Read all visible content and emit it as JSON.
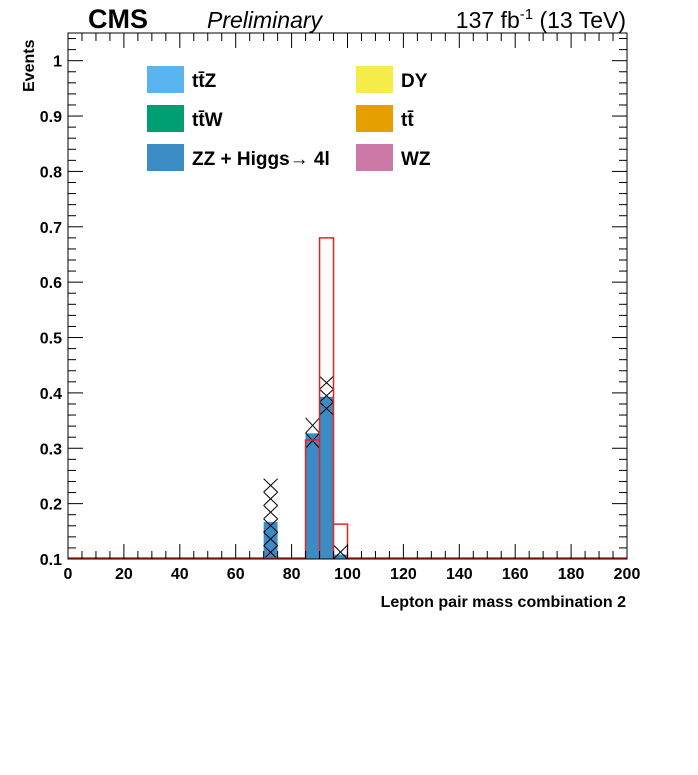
{
  "header": {
    "experiment": "CMS",
    "status": "Preliminary",
    "lumi_value": "137 fb",
    "lumi_exp": "-1",
    "lumi_energy": " (13 TeV)"
  },
  "chart_data": {
    "type": "bar",
    "xlabel": "Lepton pair mass combination 2",
    "ylabel": "Events",
    "xlim": [
      0,
      200
    ],
    "ylim": [
      0.1,
      1.05
    ],
    "xticks": [
      0,
      20,
      40,
      60,
      80,
      100,
      120,
      140,
      160,
      180,
      200
    ],
    "yticks": [
      0.1,
      0.2,
      0.3,
      0.4,
      0.5,
      0.6,
      0.7,
      0.8,
      0.9,
      1
    ],
    "bin_width": 5,
    "legend": [
      {
        "label": "tt̄Z",
        "color": "#5ab4ef"
      },
      {
        "label": "DY",
        "color": "#f5ec4a"
      },
      {
        "label": "tt̄W",
        "color": "#009e73"
      },
      {
        "label": "tt̄",
        "color": "#e69f00"
      },
      {
        "label": "ZZ + Higgs→ 4l",
        "color": "#3b8cc4"
      },
      {
        "label": "WZ",
        "color": "#cc79a7"
      }
    ],
    "stack_bins": [
      {
        "x0": 70,
        "x1": 75,
        "value": 0.167
      },
      {
        "x0": 85,
        "x1": 90,
        "value": 0.327
      },
      {
        "x0": 90,
        "x1": 95,
        "value": 0.393
      },
      {
        "x0": 95,
        "x1": 100,
        "value": 0.108
      }
    ],
    "uncertainty": [
      {
        "x0": 70,
        "x1": 75,
        "low": 0.1,
        "high": 0.245
      },
      {
        "x0": 85,
        "x1": 90,
        "low": 0.3,
        "high": 0.355
      },
      {
        "x0": 90,
        "x1": 95,
        "low": 0.36,
        "high": 0.43
      },
      {
        "x0": 95,
        "x1": 100,
        "low": 0.1,
        "high": 0.125
      }
    ],
    "signal_line": {
      "color": "#e8231f",
      "bins": [
        {
          "x0": 85,
          "x1": 90,
          "value": 0.315
        },
        {
          "x0": 90,
          "x1": 95,
          "value": 0.68
        },
        {
          "x0": 95,
          "x1": 100,
          "value": 0.163
        }
      ]
    },
    "grid": false,
    "legend_position": "top"
  }
}
